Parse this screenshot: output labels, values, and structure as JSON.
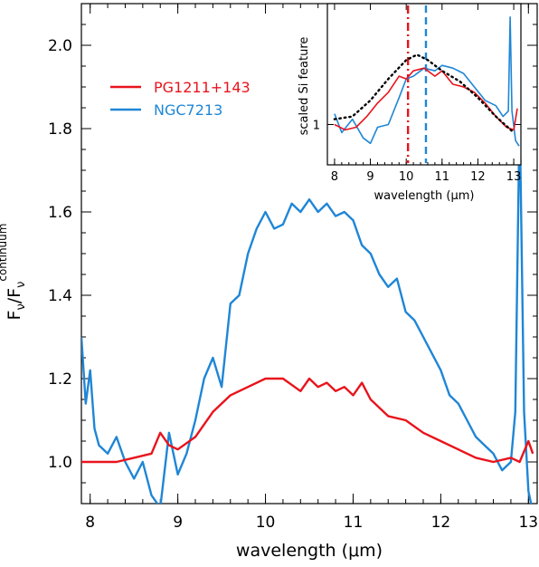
{
  "chart_data": [
    {
      "type": "line",
      "xlabel_pre": "wavelength (",
      "xlabel_mu": "μ",
      "xlabel_post": "m)",
      "ylabel": {
        "F": "F",
        "nu": "ν",
        "slash": "/F",
        "nu2": "ν",
        "sup": "continuum"
      },
      "xlim": [
        7.9,
        13.1
      ],
      "ylim": [
        0.9,
        2.1
      ],
      "x_ticks": [
        "8",
        "9",
        "10",
        "11",
        "12",
        "13"
      ],
      "y_ticks": [
        "1.0",
        "1.2",
        "1.4",
        "1.6",
        "1.8",
        "2.0"
      ],
      "legend_position": "top-left",
      "grid": false,
      "series": [
        {
          "name": "PG1211+143",
          "color": "#e8141c",
          "x": [
            7.9,
            8.1,
            8.3,
            8.5,
            8.7,
            8.8,
            8.9,
            9.0,
            9.2,
            9.4,
            9.6,
            9.8,
            10.0,
            10.2,
            10.4,
            10.5,
            10.6,
            10.7,
            10.8,
            10.9,
            11.0,
            11.1,
            11.2,
            11.4,
            11.6,
            11.8,
            12.0,
            12.2,
            12.4,
            12.6,
            12.8,
            12.9,
            13.0,
            13.05
          ],
          "y": [
            1.0,
            1.0,
            1.0,
            1.01,
            1.02,
            1.07,
            1.04,
            1.03,
            1.06,
            1.12,
            1.16,
            1.18,
            1.2,
            1.2,
            1.17,
            1.2,
            1.18,
            1.19,
            1.17,
            1.18,
            1.16,
            1.19,
            1.15,
            1.11,
            1.1,
            1.07,
            1.05,
            1.03,
            1.01,
            1.0,
            1.01,
            1.0,
            1.05,
            1.02
          ]
        },
        {
          "name": "NGC7213",
          "color": "#1f86d6",
          "x": [
            7.9,
            7.95,
            8.0,
            8.05,
            8.1,
            8.2,
            8.3,
            8.4,
            8.5,
            8.6,
            8.7,
            8.8,
            8.9,
            9.0,
            9.1,
            9.2,
            9.3,
            9.4,
            9.5,
            9.6,
            9.7,
            9.8,
            9.9,
            10.0,
            10.1,
            10.2,
            10.3,
            10.4,
            10.5,
            10.6,
            10.7,
            10.8,
            10.9,
            11.0,
            11.1,
            11.2,
            11.3,
            11.4,
            11.5,
            11.6,
            11.7,
            11.8,
            11.9,
            12.0,
            12.1,
            12.2,
            12.3,
            12.4,
            12.5,
            12.6,
            12.7,
            12.8,
            12.85,
            12.9,
            12.95,
            13.0,
            13.05,
            13.1
          ],
          "y": [
            1.3,
            1.14,
            1.22,
            1.08,
            1.04,
            1.02,
            1.06,
            1.0,
            0.96,
            1.0,
            0.92,
            0.89,
            1.07,
            0.97,
            1.02,
            1.1,
            1.2,
            1.25,
            1.18,
            1.38,
            1.4,
            1.5,
            1.56,
            1.6,
            1.56,
            1.57,
            1.62,
            1.6,
            1.63,
            1.6,
            1.62,
            1.59,
            1.6,
            1.58,
            1.52,
            1.5,
            1.45,
            1.42,
            1.44,
            1.36,
            1.34,
            1.3,
            1.26,
            1.22,
            1.16,
            1.14,
            1.1,
            1.06,
            1.04,
            1.02,
            0.98,
            1.0,
            1.12,
            1.84,
            1.12,
            0.93,
            0.88,
            0.86
          ]
        }
      ]
    },
    {
      "type": "line",
      "ylabel": "scaled Si feature",
      "xlabel_pre": "wavelength (",
      "xlabel_mu": "μ",
      "xlabel_post": "m)",
      "xlim": [
        7.8,
        13.2
      ],
      "ylim": [
        0.85,
        1.45
      ],
      "x_ticks": [
        "8",
        "9",
        "10",
        "11",
        "12",
        "13"
      ],
      "y_ticks": [
        "1"
      ],
      "reference_lines": [
        {
          "x": 10.05,
          "color": "#e8141c",
          "style": "dash-dot"
        },
        {
          "x": 10.55,
          "color": "#1f86d6",
          "style": "dashed"
        }
      ],
      "series": [
        {
          "color": "#000000",
          "style": "dotted",
          "x": [
            8.0,
            8.5,
            9.0,
            9.5,
            10.0,
            10.3,
            10.6,
            11.0,
            11.5,
            12.0,
            12.5,
            13.0
          ],
          "y": [
            1.02,
            1.03,
            1.09,
            1.17,
            1.24,
            1.26,
            1.24,
            1.2,
            1.16,
            1.1,
            1.03,
            0.97
          ]
        },
        {
          "color": "#e8141c",
          "x": [
            8.0,
            8.3,
            8.6,
            8.9,
            9.2,
            9.5,
            9.8,
            10.0,
            10.2,
            10.5,
            10.8,
            11.0,
            11.3,
            11.6,
            11.9,
            12.2,
            12.5,
            12.8,
            13.0,
            13.1
          ],
          "y": [
            1.0,
            0.98,
            0.99,
            1.03,
            1.08,
            1.12,
            1.18,
            1.17,
            1.2,
            1.21,
            1.18,
            1.2,
            1.15,
            1.14,
            1.12,
            1.08,
            1.03,
            0.99,
            0.98,
            1.06
          ]
        },
        {
          "color": "#1f86d6",
          "x": [
            8.0,
            8.2,
            8.5,
            8.8,
            9.0,
            9.2,
            9.5,
            9.8,
            10.0,
            10.2,
            10.5,
            10.8,
            11.0,
            11.3,
            11.6,
            11.9,
            12.2,
            12.5,
            12.7,
            12.85,
            12.9,
            12.95,
            13.05,
            13.15
          ],
          "y": [
            1.04,
            0.97,
            1.02,
            0.95,
            0.93,
            0.99,
            1.0,
            1.1,
            1.17,
            1.18,
            1.21,
            1.2,
            1.22,
            1.21,
            1.19,
            1.14,
            1.09,
            1.07,
            1.03,
            1.05,
            1.4,
            1.05,
            0.94,
            0.92
          ]
        }
      ]
    }
  ]
}
